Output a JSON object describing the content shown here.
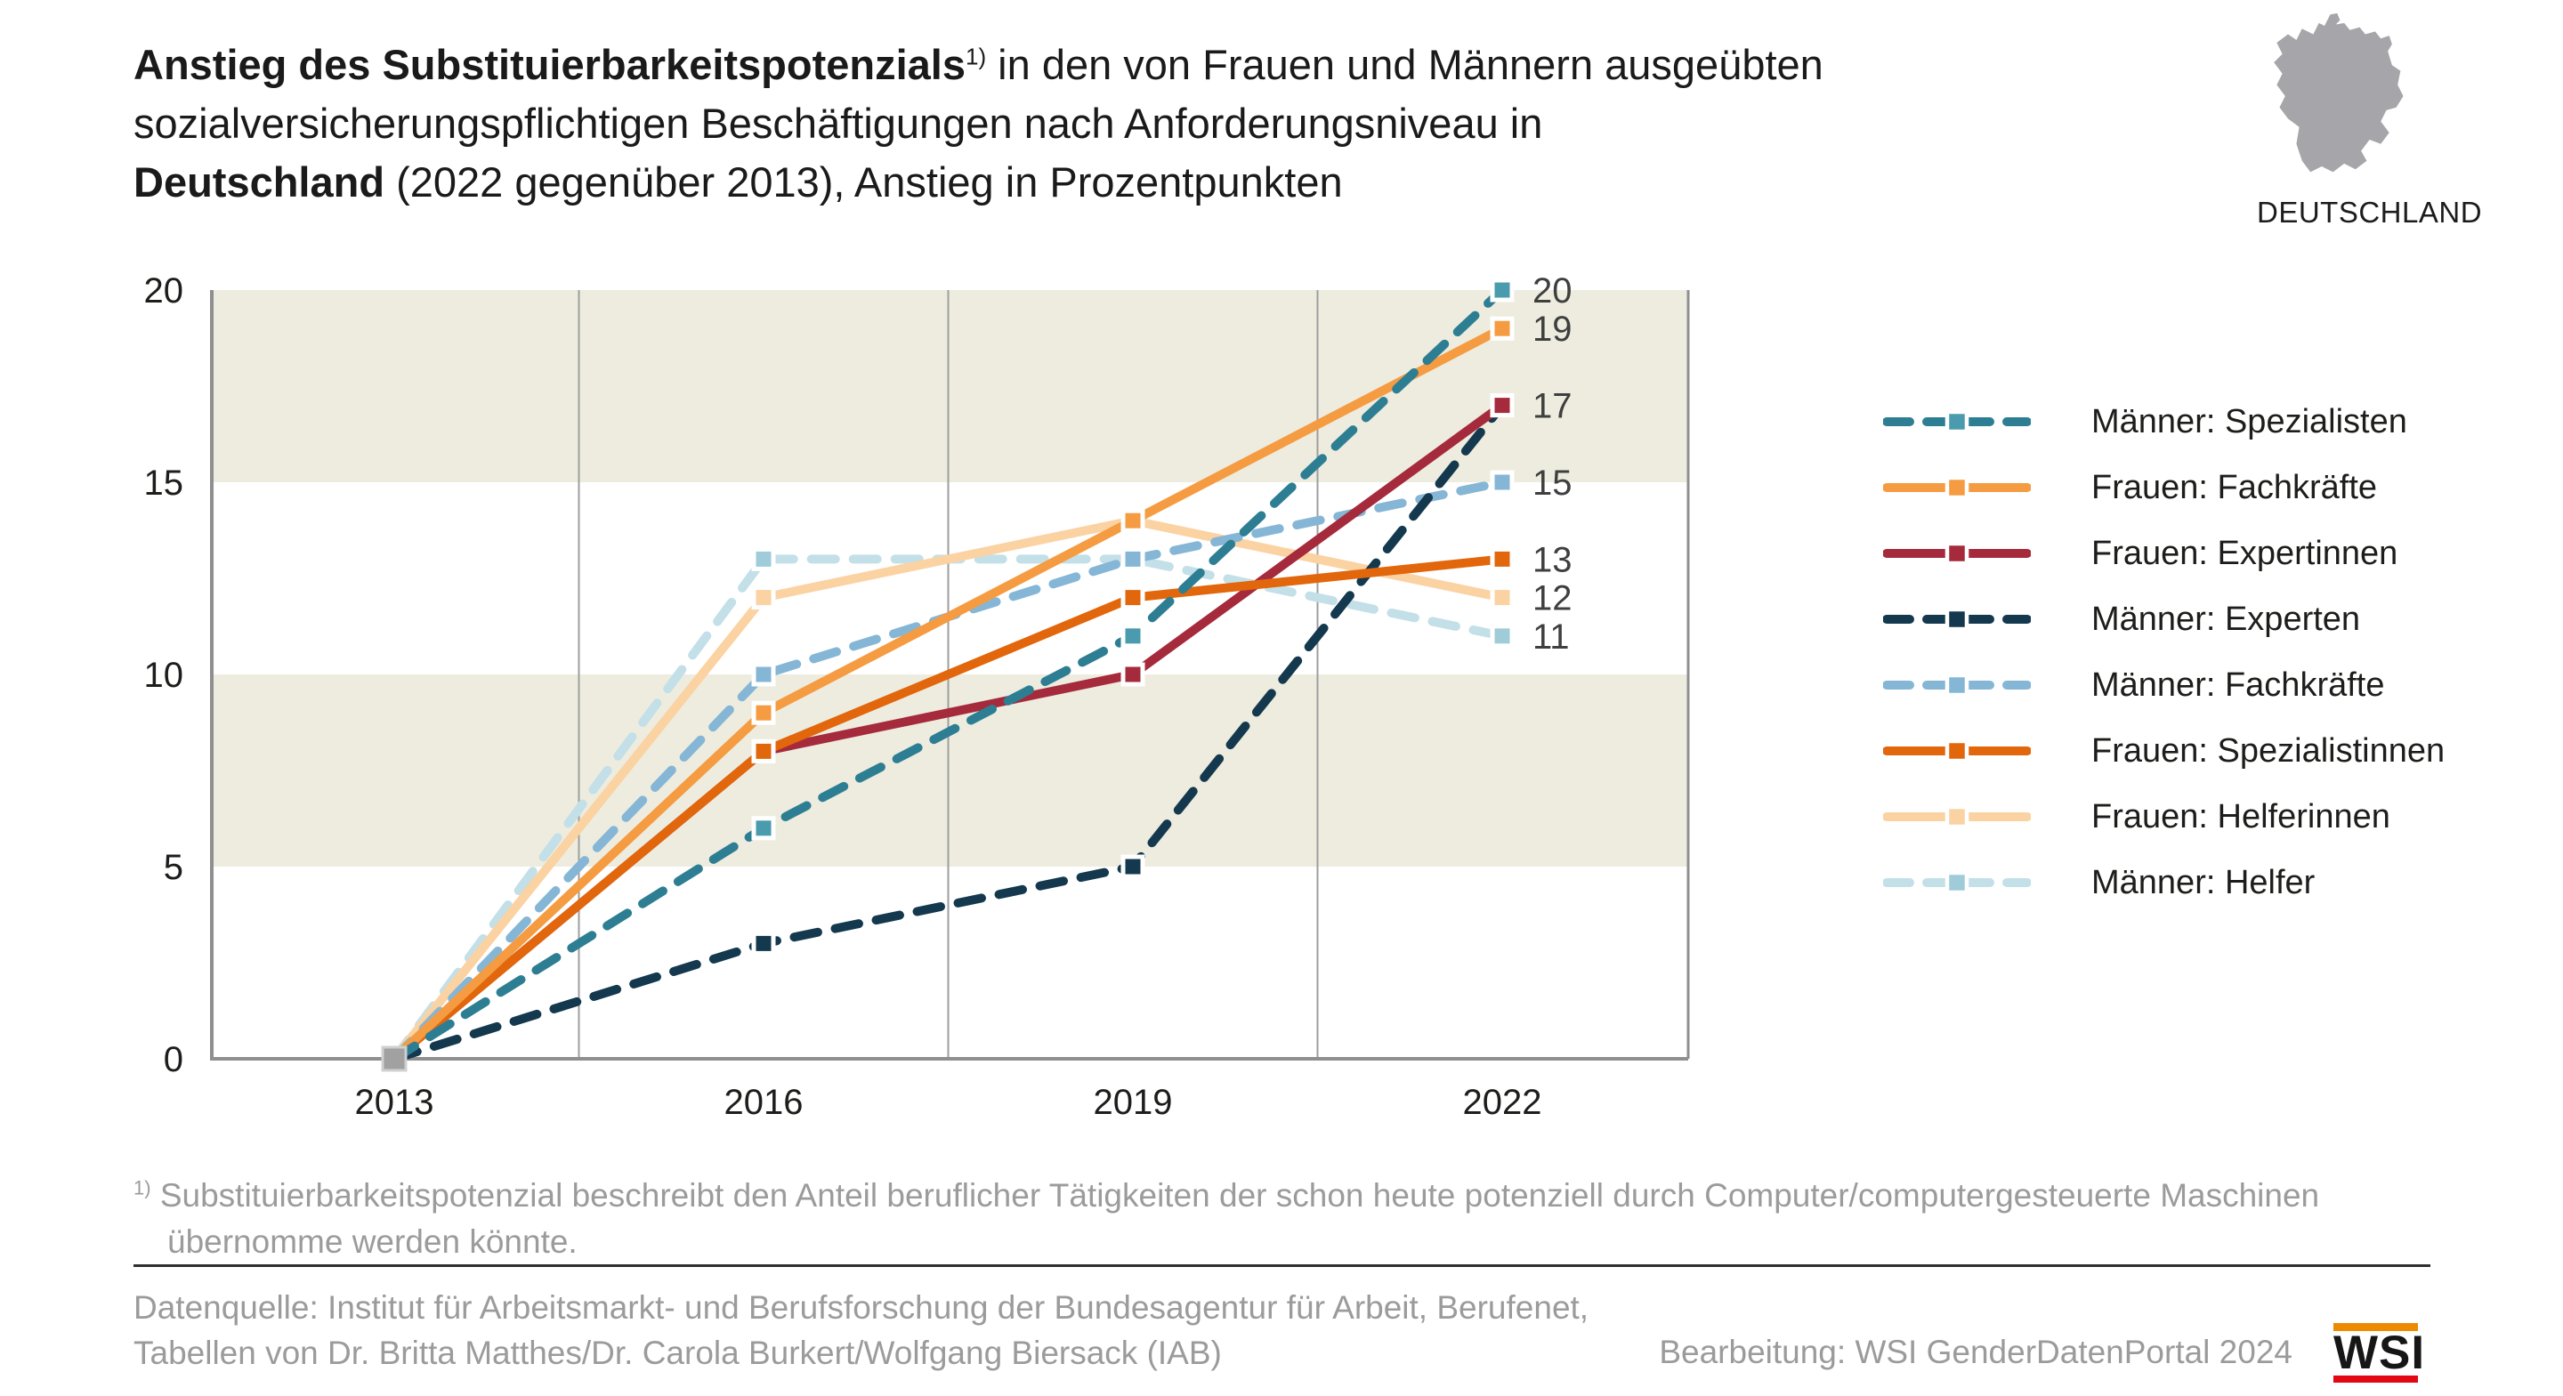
{
  "title": {
    "bold1": "Anstieg des Substituierbarkeitspotenzials",
    "sup": "1)",
    "rest1": " in den von Frauen und Männern ausgeübten",
    "line2": "sozialversicherungspflichtigen Beschäftigungen nach Anforderungsniveau in",
    "bold3": "Deutschland",
    "rest3": " (2022 gegenüber 2013), Anstieg in Prozentpunkten"
  },
  "region_label": "DEUTSCHLAND",
  "chart_data": {
    "type": "line",
    "categories": [
      "2013",
      "2016",
      "2019",
      "2022"
    ],
    "y_ticks": [
      0,
      5,
      10,
      15,
      20
    ],
    "ylim": [
      0,
      20
    ],
    "grid": "vertical-midpoint-lines",
    "legend_position": "right",
    "band_color": "#edecdf",
    "start_marker_color": "#a1a1a1",
    "series": [
      {
        "name": "Männer: Spezialisten",
        "color": "#2e7e93",
        "marker_color": "#4a9bad",
        "dashed": true,
        "values": [
          0,
          6,
          11,
          20
        ],
        "end_label": "20"
      },
      {
        "name": "Frauen: Fachkräfte",
        "color": "#f59b41",
        "marker_color": "#f59b41",
        "dashed": false,
        "values": [
          0,
          9,
          14,
          19
        ],
        "end_label": "19"
      },
      {
        "name": "Frauen: Expertinnen",
        "color": "#a52a3b",
        "marker_color": "#a52a3b",
        "dashed": false,
        "values": [
          0,
          8,
          10,
          17
        ],
        "end_label": "17"
      },
      {
        "name": "Männer: Experten",
        "color": "#14384d",
        "marker_color": "#14384d",
        "dashed": true,
        "values": [
          0,
          3,
          5,
          17
        ],
        "end_label": ""
      },
      {
        "name": "Männer: Fachkräfte",
        "color": "#85b6d6",
        "marker_color": "#85b6d6",
        "dashed": true,
        "values": [
          0,
          10,
          13,
          15
        ],
        "end_label": "15"
      },
      {
        "name": "Frauen: Spezialistinnen",
        "color": "#e2660c",
        "marker_color": "#e2660c",
        "dashed": false,
        "values": [
          0,
          8,
          12,
          13
        ],
        "end_label": "13"
      },
      {
        "name": "Frauen: Helferinnen",
        "color": "#fbd2a2",
        "marker_color": "#fbd2a2",
        "dashed": false,
        "values": [
          0,
          12,
          14,
          12
        ],
        "end_label": "12"
      },
      {
        "name": "Männer: Helfer",
        "color": "#c3dfe8",
        "marker_color": "#9fccd8",
        "dashed": true,
        "values": [
          0,
          13,
          13,
          11
        ],
        "end_label": "11"
      }
    ]
  },
  "footnote": {
    "sup": "1)",
    "line1": "Substituierbarkeitspotenzial beschreibt den Anteil beruflicher Tätigkeiten der schon heute potenziell durch Computer/computergesteuerte Maschinen",
    "line2": "übernomme werden könnte."
  },
  "source": {
    "line1": "Datenquelle: Institut für Arbeitsmarkt- und Berufsforschung der Bundesagentur für Arbeit, Berufenet,",
    "line2": "Tabellen von Dr. Britta Matthes/Dr. Carola Burkert/Wolfgang Biersack (IAB)"
  },
  "attribution": "Bearbeitung: WSI GenderDatenPortal 2024",
  "logo": {
    "text": "WSI",
    "top_bar_color": "#ee8a00",
    "bottom_bar_color": "#e30613"
  }
}
